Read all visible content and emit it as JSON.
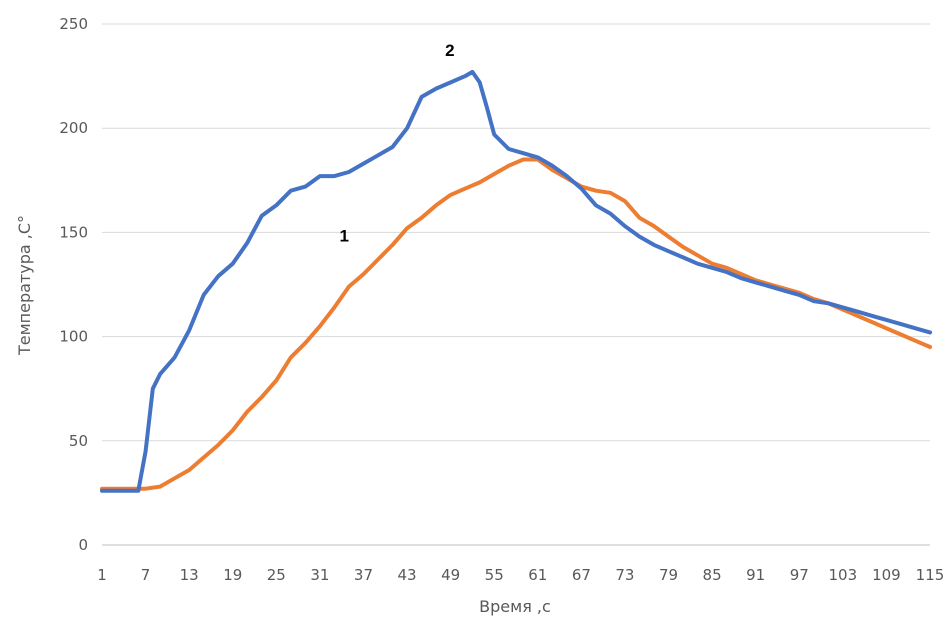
{
  "chart_data": {
    "type": "line",
    "xlabel": "Время ,с",
    "ylabel": "Температура ,С°",
    "x_tick_labels": [
      "1",
      "7",
      "13",
      "19",
      "25",
      "31",
      "37",
      "43",
      "49",
      "55",
      "61",
      "67",
      "73",
      "79",
      "85",
      "91",
      "97",
      "103",
      "109",
      "115"
    ],
    "xlim": [
      1,
      115
    ],
    "ylim": [
      0,
      250
    ],
    "y_ticks": [
      0,
      50,
      100,
      150,
      200,
      250
    ],
    "grid": true,
    "legend": "none",
    "series": [
      {
        "name": "1",
        "color": "#ed7d31",
        "x": [
          1,
          3,
          5,
          7,
          9,
          11,
          13,
          15,
          17,
          19,
          21,
          23,
          25,
          27,
          29,
          31,
          33,
          35,
          37,
          39,
          41,
          43,
          45,
          47,
          49,
          51,
          53,
          55,
          57,
          59,
          61,
          63,
          65,
          67,
          69,
          71,
          73,
          75,
          77,
          79,
          81,
          83,
          85,
          87,
          89,
          91,
          93,
          95,
          97,
          99,
          101,
          103,
          105,
          107,
          109,
          111,
          113,
          115
        ],
        "y": [
          27,
          27,
          27,
          27,
          28,
          32,
          36,
          42,
          48,
          55,
          64,
          71,
          79,
          90,
          97,
          105,
          114,
          124,
          130,
          137,
          144,
          152,
          157,
          163,
          168,
          171,
          174,
          178,
          182,
          185,
          185,
          180,
          176,
          172,
          170,
          169,
          165,
          157,
          153,
          148,
          143,
          139,
          135,
          133,
          130,
          127,
          125,
          123,
          121,
          118,
          116,
          113,
          110,
          107,
          104,
          101,
          98,
          95
        ]
      },
      {
        "name": "2",
        "color": "#4472c4",
        "x": [
          1,
          3,
          5,
          6,
          7,
          8,
          9,
          11,
          13,
          15,
          17,
          19,
          21,
          23,
          25,
          27,
          29,
          31,
          33,
          35,
          37,
          39,
          41,
          43,
          45,
          47,
          49,
          51,
          52,
          53,
          54,
          55,
          57,
          59,
          61,
          63,
          65,
          67,
          69,
          71,
          73,
          75,
          77,
          79,
          81,
          83,
          85,
          87,
          89,
          91,
          93,
          95,
          97,
          99,
          101,
          103,
          105,
          107,
          109,
          111,
          113,
          115
        ],
        "y": [
          26,
          26,
          26,
          26,
          45,
          75,
          82,
          90,
          103,
          120,
          129,
          135,
          145,
          158,
          163,
          170,
          172,
          177,
          177,
          179,
          183,
          187,
          191,
          200,
          215,
          219,
          222,
          225,
          227,
          222,
          210,
          197,
          190,
          188,
          186,
          182,
          177,
          171,
          163,
          159,
          153,
          148,
          144,
          141,
          138,
          135,
          133,
          131,
          128,
          126,
          124,
          122,
          120,
          117,
          116,
          114,
          112,
          110,
          108,
          106,
          104,
          102
        ]
      }
    ]
  }
}
